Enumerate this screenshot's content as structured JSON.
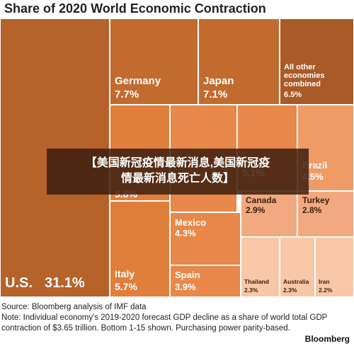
{
  "chart_data": {
    "type": "treemap",
    "title": "Share of 2020 World Economic Contraction",
    "categories": [
      "U.S.",
      "Germany",
      "Japan",
      "All other economies combined",
      null,
      "Italy",
      null,
      "Mexico",
      "Brazil",
      "Spain",
      "Canada",
      "Turkey",
      "Thailand",
      "Australia",
      "Iran"
    ],
    "values": [
      31.1,
      7.7,
      7.1,
      6.5,
      5.8,
      5.7,
      5.1,
      4.3,
      4.5,
      3.9,
      2.9,
      2.8,
      2.3,
      2.3,
      2.2
    ],
    "value_labels": [
      "31.1%",
      "7.7%",
      "7.1%",
      "6.5%",
      "5.8%",
      "5.7%",
      "5.1%",
      "4.3%",
      "4.5%",
      "3.9%",
      "2.9%",
      "2.8%",
      "2.3%",
      "2.3%",
      "2.2%"
    ],
    "colors": [
      "#b5622b",
      "#c26b2e",
      "#c26b2e",
      "#a95a26",
      "#e07f3c",
      "#e07f3c",
      "#e8884a",
      "#e8884a",
      "#ee9b66",
      "#e8884a",
      "#f2a97f",
      "#f2a97f",
      "#f7c7a8",
      "#f7c7a8",
      "#f7c7a8"
    ],
    "source": "Source: Bloomberg analysis of IMF data",
    "note": "Note: Individual economy's 2019-2020 forecast GDP decline as a share of world total GDP contraction of $3.65 trillion. Bottom 1-15 shown. Purchasing power parity-based.",
    "brand": "Bloomberg"
  },
  "overlay": {
    "lines": [
      "【美国新冠疫情最新消息,美国新冠疫",
      "情最新消息死亡人数】"
    ]
  }
}
